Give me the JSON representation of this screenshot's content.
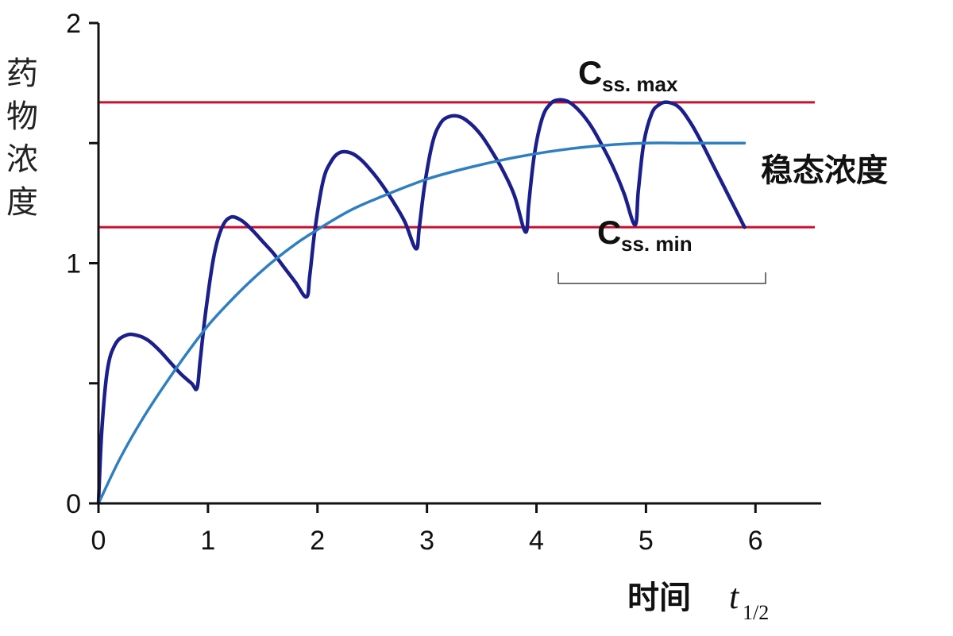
{
  "chart_data": {
    "type": "line",
    "title": "",
    "ylabel": "药物浓度",
    "xlabel": "时间",
    "xlabel_unit_symbol": "t",
    "xlabel_unit_subscript": "1/2",
    "xlim": [
      0,
      6.6
    ],
    "ylim": [
      0,
      2
    ],
    "x_ticks": [
      "0",
      "1",
      "2",
      "3",
      "4",
      "5",
      "6"
    ],
    "y_ticks": [
      "0",
      "1",
      "2"
    ],
    "y_tick_values": [
      0,
      1,
      2
    ],
    "y_minor_ticks": [
      0.5,
      1.5
    ],
    "grid": false,
    "legend": "none",
    "series": [
      {
        "color": "#1a1f8c",
        "x": [
          0,
          0.03,
          0.08,
          0.15,
          0.25,
          0.35,
          0.45,
          0.55,
          0.65,
          0.75,
          0.85,
          0.9,
          0.93,
          0.98,
          1.05,
          1.12,
          1.2,
          1.3,
          1.4,
          1.5,
          1.6,
          1.7,
          1.8,
          1.9,
          1.93,
          1.98,
          2.05,
          2.12,
          2.2,
          2.3,
          2.4,
          2.5,
          2.6,
          2.7,
          2.8,
          2.9,
          2.93,
          2.98,
          3.05,
          3.12,
          3.2,
          3.3,
          3.4,
          3.5,
          3.6,
          3.7,
          3.8,
          3.9,
          3.93,
          3.98,
          4.05,
          4.12,
          4.2,
          4.3,
          4.4,
          4.5,
          4.6,
          4.7,
          4.8,
          4.9,
          4.93,
          4.98,
          5.05,
          5.12,
          5.2,
          5.3,
          5.4,
          5.5,
          5.6,
          5.7,
          5.8,
          5.9
        ],
        "y": [
          0,
          0.3,
          0.55,
          0.66,
          0.7,
          0.7,
          0.68,
          0.64,
          0.59,
          0.54,
          0.5,
          0.48,
          0.6,
          0.8,
          1.02,
          1.14,
          1.19,
          1.18,
          1.14,
          1.09,
          1.04,
          0.98,
          0.92,
          0.86,
          0.95,
          1.15,
          1.34,
          1.42,
          1.46,
          1.46,
          1.43,
          1.38,
          1.32,
          1.25,
          1.17,
          1.06,
          1.15,
          1.33,
          1.5,
          1.58,
          1.61,
          1.61,
          1.58,
          1.53,
          1.46,
          1.38,
          1.28,
          1.13,
          1.25,
          1.45,
          1.6,
          1.66,
          1.68,
          1.67,
          1.63,
          1.57,
          1.49,
          1.4,
          1.29,
          1.16,
          1.3,
          1.5,
          1.62,
          1.66,
          1.67,
          1.65,
          1.59,
          1.51,
          1.42,
          1.33,
          1.24,
          1.15
        ]
      },
      {
        "color": "#2f7fc0",
        "x": [
          0,
          0.2,
          0.4,
          0.6,
          0.8,
          1.0,
          1.2,
          1.4,
          1.6,
          1.8,
          2.0,
          2.3,
          2.6,
          3.0,
          3.4,
          3.8,
          4.2,
          4.6,
          5.0,
          5.4,
          5.9
        ],
        "y": [
          0,
          0.19,
          0.35,
          0.49,
          0.62,
          0.74,
          0.84,
          0.93,
          1.01,
          1.08,
          1.14,
          1.22,
          1.28,
          1.35,
          1.4,
          1.44,
          1.47,
          1.49,
          1.5,
          1.5,
          1.5
        ]
      }
    ],
    "reference_lines": [
      {
        "y": 1.67,
        "color": "#c8102e",
        "label_main": "C",
        "label_sub": "ss. max"
      },
      {
        "y": 1.15,
        "color": "#c8102e",
        "label_main": "C",
        "label_sub": "ss. min"
      }
    ],
    "annotation": {
      "text": "稳态浓度",
      "bracket_x": [
        4.2,
        6.1
      ]
    }
  }
}
